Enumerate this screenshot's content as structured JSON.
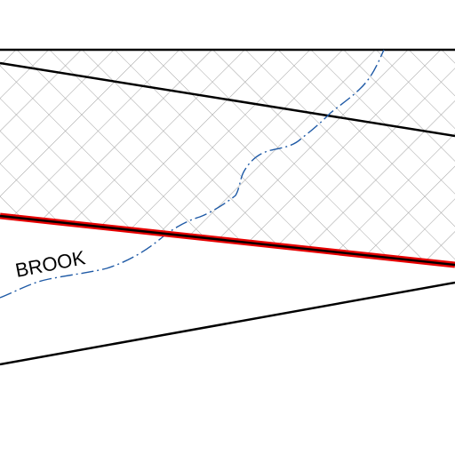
{
  "map": {
    "labels": {
      "brook": "BROOK"
    },
    "colors": {
      "background": "#ffffff",
      "hatch": "#a6a6a6",
      "boundary": "#000000",
      "highlight_road": "#e60000",
      "stream": "#1f5aa6"
    },
    "features": [
      {
        "kind": "hatched-area",
        "pattern": "diagonal-crosshatch"
      },
      {
        "kind": "boundary-line",
        "style": "solid-black"
      },
      {
        "kind": "highlighted-road",
        "style": "black-with-red-casing"
      },
      {
        "kind": "stream",
        "style": "dash-dot-blue",
        "name": "BROOK"
      }
    ]
  }
}
